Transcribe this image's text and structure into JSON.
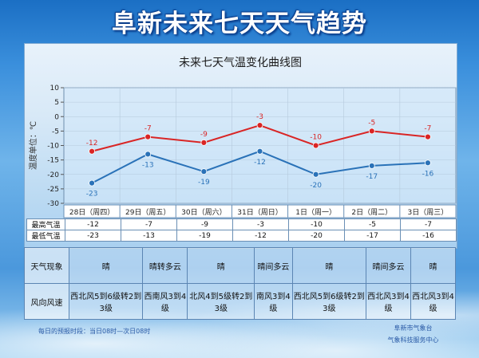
{
  "header": {
    "title": "阜新未来七天天气趋势"
  },
  "chart_data": {
    "type": "line",
    "title": "未来七天气温变化曲线图",
    "ylabel": "温度单位：℃",
    "ylim": [
      -30,
      10
    ],
    "yticks": [
      10,
      5,
      0,
      -5,
      -10,
      -15,
      -20,
      -25,
      -30
    ],
    "categories": [
      "28日（周四）",
      "29日（周五）",
      "30日（周六）",
      "31日（周日）",
      "1日（周一）",
      "2日（周二）",
      "3日（周三）"
    ],
    "series": [
      {
        "values": [
          -12,
          -7,
          -9,
          -3,
          -10,
          -5,
          -7
        ],
        "color": "#d92525"
      },
      {
        "values": [
          -23,
          -13,
          -19,
          -12,
          -20,
          -17,
          -16
        ],
        "color": "#2a72b8"
      }
    ],
    "grid": true
  },
  "table": {
    "row_headers": [
      "最高气温",
      "最低气温"
    ],
    "high": [
      "-12",
      "-7",
      "-9",
      "-3",
      "-10",
      "-5",
      "-7"
    ],
    "low": [
      "-23",
      "-13",
      "-19",
      "-12",
      "-20",
      "-17",
      "-16"
    ]
  },
  "weather": {
    "sky_label": "天气现象",
    "wind_label": "风向风速",
    "sky": [
      "晴",
      "晴转多云",
      "晴",
      "晴间多云",
      "晴",
      "晴间多云",
      "晴"
    ],
    "wind": [
      "西北风5到6级转2到3级",
      "西南风3到4级",
      "北风4到5级转2到3级",
      "南风3到4级",
      "西北风5到6级转2到3级",
      "西北风3到4级",
      "西北风3到4级"
    ]
  },
  "footer": {
    "period": "每日的预报时段：当日08时—次日08时",
    "org1": "阜新市气象台",
    "org2": "气象科技服务中心"
  }
}
